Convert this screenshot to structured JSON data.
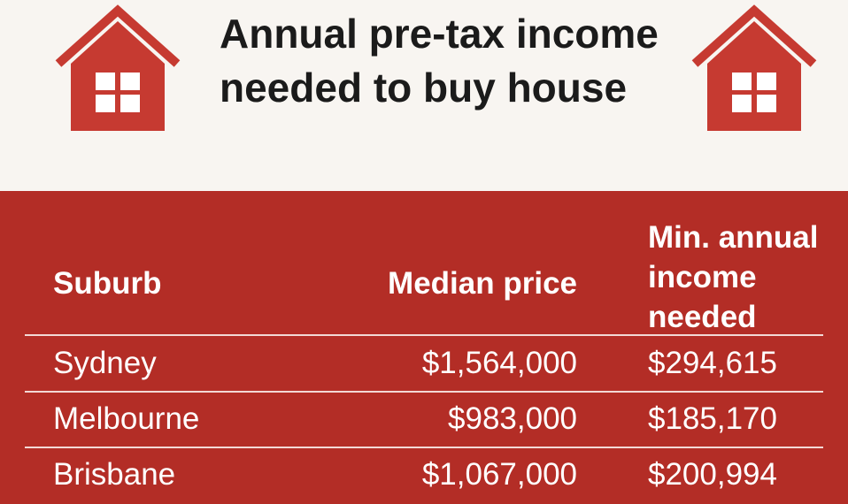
{
  "header": {
    "title": "Annual pre-tax income needed to buy house"
  },
  "table": {
    "columns": [
      "Suburb",
      "Median price",
      "Min. annual income needed"
    ],
    "rows": [
      [
        "Sydney",
        "$1,564,000",
        "$294,615"
      ],
      [
        "Melbourne",
        "$983,000",
        "$185,170"
      ],
      [
        "Brisbane",
        "$1,067,000",
        "$200,994"
      ]
    ]
  }
}
